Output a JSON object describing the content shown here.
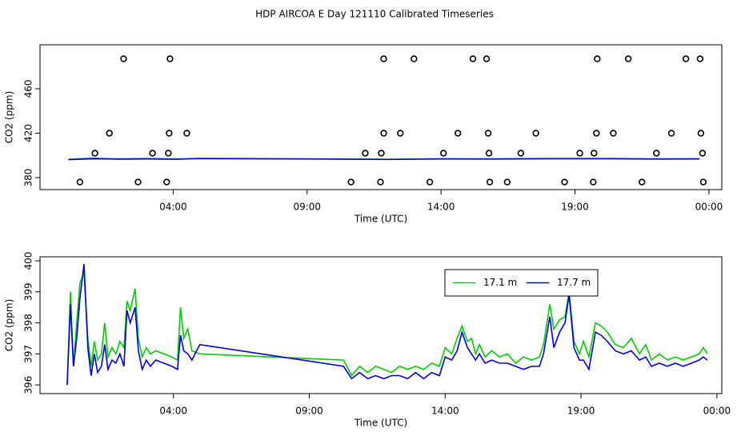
{
  "title": "HDP AIRCOA E  Day 121110  Calibrated Timeseries",
  "chart_data": [
    {
      "type": "line",
      "x_label": "Time (UTC)",
      "y_label": "CO2 (ppm)",
      "xlim": [
        -0.97,
        24.48
      ],
      "ylim": [
        369.2,
        499.6
      ],
      "xticks": [
        {
          "value": 4,
          "label": "04:00"
        },
        {
          "value": 9,
          "label": "09:00"
        },
        {
          "value": 14,
          "label": "14:00"
        },
        {
          "value": 19,
          "label": "19:00"
        },
        {
          "value": 24,
          "label": "00:00"
        }
      ],
      "yticks": [
        380,
        420,
        460
      ],
      "x": [
        0.09,
        1,
        2,
        3,
        4.15,
        4.97,
        10.26,
        12,
        14,
        16,
        18,
        20,
        22,
        23.65
      ],
      "series": [
        {
          "color": "#00cc00",
          "values": [
            396.5,
            397.5,
            396.9,
            397.3,
            396.8,
            397.0,
            396.8,
            396.5,
            397.0,
            396.9,
            397.2,
            397.2,
            396.9,
            397.0
          ]
        },
        {
          "color": "#0000dd",
          "values": [
            396.2,
            397.0,
            396.6,
            396.8,
            396.5,
            397.3,
            396.6,
            396.3,
            396.8,
            396.7,
            397.0,
            397.0,
            396.7,
            396.8
          ]
        }
      ],
      "markers": {
        "color": "#000000",
        "x": [
          2.15,
          3.88,
          11.86,
          12.99,
          15.19,
          15.7,
          19.83,
          20.99,
          23.14,
          23.67,
          1.62,
          3.85,
          4.51,
          11.86,
          12.48,
          14.63,
          15.76,
          17.54,
          19.8,
          20.43,
          22.6,
          23.7,
          1.08,
          3.23,
          3.82,
          11.17,
          11.77,
          14.09,
          15.79,
          16.98,
          19.18,
          19.71,
          22.04,
          23.76,
          0.52,
          2.69,
          3.76,
          10.64,
          11.74,
          13.58,
          15.82,
          16.47,
          18.61,
          19.68,
          21.5,
          23.79
        ],
        "values": [
          487,
          487,
          487,
          487,
          487,
          487,
          487,
          487,
          487,
          487,
          420,
          420,
          420,
          420,
          420,
          420,
          420,
          420,
          420,
          420,
          420,
          420,
          402,
          402,
          402,
          402,
          402,
          402,
          402,
          402,
          402,
          402,
          402,
          402,
          376,
          376,
          376,
          376,
          376,
          376,
          376,
          376,
          376,
          376,
          376,
          376
        ]
      }
    },
    {
      "type": "line",
      "x_label": "Time (UTC)",
      "y_label": "CO2 (ppm)",
      "xlim": [
        -0.91,
        24.18
      ],
      "ylim": [
        395.72,
        400.13
      ],
      "xticks": [
        {
          "value": 4,
          "label": "04:00"
        },
        {
          "value": 9,
          "label": "09:00"
        },
        {
          "value": 14,
          "label": "14:00"
        },
        {
          "value": 19,
          "label": "19:00"
        },
        {
          "value": 24,
          "label": "00:00"
        }
      ],
      "yticks": [
        396,
        397,
        398,
        399,
        400
      ],
      "legend": "top-right",
      "x": [
        0.09,
        0.21,
        0.32,
        0.44,
        0.56,
        0.71,
        0.85,
        0.97,
        1.09,
        1.21,
        1.35,
        1.47,
        1.59,
        1.74,
        1.88,
        2.03,
        2.18,
        2.29,
        2.41,
        2.59,
        2.71,
        2.85,
        3.0,
        3.15,
        3.35,
        3.65,
        3.94,
        4.15,
        4.26,
        4.38,
        4.53,
        4.68,
        4.97,
        10.26,
        10.56,
        10.85,
        11.15,
        11.44,
        11.74,
        12.03,
        12.32,
        12.62,
        12.91,
        13.21,
        13.5,
        13.79,
        14.0,
        14.24,
        14.44,
        14.62,
        14.82,
        14.97,
        15.12,
        15.26,
        15.47,
        15.71,
        16.0,
        16.29,
        16.59,
        16.88,
        17.18,
        17.47,
        17.62,
        17.85,
        18.0,
        18.21,
        18.41,
        18.56,
        18.74,
        18.94,
        19.09,
        19.29,
        19.53,
        19.74,
        19.97,
        20.26,
        20.56,
        20.85,
        21.15,
        21.38,
        21.59,
        21.88,
        22.18,
        22.47,
        22.76,
        23.06,
        23.35,
        23.5,
        23.65
      ],
      "series": [
        {
          "name": "17.1 m",
          "color": "#00cc00",
          "values": [
            396.0,
            399.0,
            396.6,
            398.0,
            399.3,
            399.6,
            397.5,
            396.6,
            397.4,
            396.8,
            397.0,
            398.0,
            396.9,
            397.2,
            397.0,
            397.4,
            397.2,
            398.7,
            398.4,
            399.1,
            397.5,
            396.9,
            397.2,
            397.0,
            397.1,
            397.0,
            396.9,
            396.8,
            398.5,
            397.5,
            397.8,
            397.1,
            397.0,
            396.8,
            396.3,
            396.6,
            396.4,
            396.6,
            396.5,
            396.4,
            396.6,
            396.5,
            396.6,
            396.5,
            396.7,
            396.6,
            397.2,
            397.0,
            397.5,
            397.9,
            397.4,
            397.5,
            397.0,
            397.3,
            396.9,
            397.1,
            396.9,
            397.0,
            396.7,
            396.9,
            396.8,
            396.9,
            397.3,
            398.6,
            397.8,
            398.1,
            398.2,
            399.0,
            397.4,
            397.0,
            397.4,
            396.9,
            398.0,
            397.9,
            397.7,
            397.3,
            397.2,
            397.5,
            397.0,
            397.3,
            396.8,
            397.0,
            396.8,
            396.9,
            396.8,
            396.9,
            397.0,
            397.2,
            397.0
          ]
        },
        {
          "name": "17.7 m",
          "color": "#0000dd",
          "values": [
            396.0,
            398.6,
            396.6,
            397.5,
            398.8,
            399.9,
            397.2,
            396.3,
            397.0,
            396.4,
            396.6,
            397.3,
            396.5,
            396.8,
            396.7,
            397.0,
            396.6,
            398.4,
            398.0,
            398.5,
            397.1,
            396.5,
            396.8,
            396.6,
            396.8,
            396.7,
            396.6,
            396.5,
            397.6,
            397.1,
            397.0,
            396.8,
            397.3,
            396.6,
            396.2,
            396.4,
            396.2,
            396.3,
            396.2,
            396.3,
            396.3,
            396.2,
            396.4,
            396.2,
            396.4,
            396.3,
            396.9,
            396.8,
            397.1,
            397.7,
            397.2,
            397.0,
            396.8,
            397.0,
            396.7,
            396.8,
            396.7,
            396.7,
            396.6,
            396.5,
            396.6,
            396.6,
            397.0,
            398.2,
            397.2,
            397.7,
            398.0,
            398.9,
            397.2,
            396.8,
            396.8,
            396.5,
            397.7,
            397.6,
            397.4,
            397.1,
            397.0,
            397.1,
            396.8,
            396.9,
            396.6,
            396.7,
            396.6,
            396.7,
            396.6,
            396.7,
            396.8,
            396.9,
            396.8
          ]
        }
      ]
    }
  ]
}
